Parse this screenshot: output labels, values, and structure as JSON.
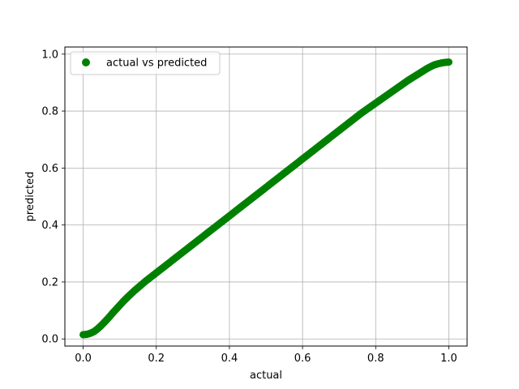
{
  "chart_data": {
    "type": "scatter",
    "title": "",
    "xlabel": "actual",
    "ylabel": "predicted",
    "xlim": [
      -0.05,
      1.05
    ],
    "ylim": [
      -0.025,
      1.025
    ],
    "x_ticks": [
      "0.0",
      "0.2",
      "0.4",
      "0.6",
      "0.8",
      "1.0"
    ],
    "y_ticks": [
      "0.0",
      "0.2",
      "0.4",
      "0.6",
      "0.8",
      "1.0"
    ],
    "grid": true,
    "legend_position": "top-left",
    "marker_color": "#008000",
    "series": [
      {
        "name": "actual vs predicted",
        "x": [
          0.0,
          0.01,
          0.02,
          0.03,
          0.04,
          0.05,
          0.06,
          0.07,
          0.08,
          0.09,
          0.1,
          0.11,
          0.12,
          0.13,
          0.14,
          0.15,
          0.16,
          0.17,
          0.18,
          0.19,
          0.2,
          0.21,
          0.22,
          0.23,
          0.24,
          0.25,
          0.26,
          0.27,
          0.28,
          0.29,
          0.3,
          0.31,
          0.32,
          0.33,
          0.34,
          0.35,
          0.36,
          0.37,
          0.38,
          0.39,
          0.4,
          0.41,
          0.42,
          0.43,
          0.44,
          0.45,
          0.46,
          0.47,
          0.48,
          0.49,
          0.5,
          0.51,
          0.52,
          0.53,
          0.54,
          0.55,
          0.56,
          0.57,
          0.58,
          0.59,
          0.6,
          0.61,
          0.62,
          0.63,
          0.64,
          0.65,
          0.66,
          0.67,
          0.68,
          0.69,
          0.7,
          0.71,
          0.72,
          0.73,
          0.74,
          0.75,
          0.76,
          0.77,
          0.78,
          0.79,
          0.8,
          0.81,
          0.82,
          0.83,
          0.84,
          0.85,
          0.86,
          0.87,
          0.88,
          0.89,
          0.9,
          0.91,
          0.92,
          0.93,
          0.94,
          0.95,
          0.96,
          0.97,
          0.98,
          0.99,
          1.0
        ],
        "y": [
          0.015,
          0.016,
          0.02,
          0.026,
          0.036,
          0.048,
          0.061,
          0.075,
          0.09,
          0.104,
          0.118,
          0.132,
          0.145,
          0.157,
          0.169,
          0.18,
          0.191,
          0.202,
          0.212,
          0.222,
          0.232,
          0.242,
          0.252,
          0.262,
          0.272,
          0.282,
          0.292,
          0.302,
          0.312,
          0.322,
          0.332,
          0.342,
          0.352,
          0.362,
          0.372,
          0.382,
          0.392,
          0.402,
          0.412,
          0.422,
          0.432,
          0.442,
          0.452,
          0.462,
          0.472,
          0.482,
          0.492,
          0.502,
          0.512,
          0.522,
          0.532,
          0.542,
          0.552,
          0.562,
          0.572,
          0.582,
          0.592,
          0.602,
          0.612,
          0.622,
          0.632,
          0.642,
          0.652,
          0.662,
          0.672,
          0.682,
          0.692,
          0.702,
          0.712,
          0.722,
          0.732,
          0.742,
          0.752,
          0.762,
          0.772,
          0.782,
          0.792,
          0.801,
          0.81,
          0.819,
          0.828,
          0.837,
          0.846,
          0.855,
          0.864,
          0.873,
          0.882,
          0.891,
          0.9,
          0.909,
          0.917,
          0.925,
          0.933,
          0.941,
          0.949,
          0.956,
          0.962,
          0.966,
          0.969,
          0.971,
          0.972
        ]
      }
    ]
  }
}
